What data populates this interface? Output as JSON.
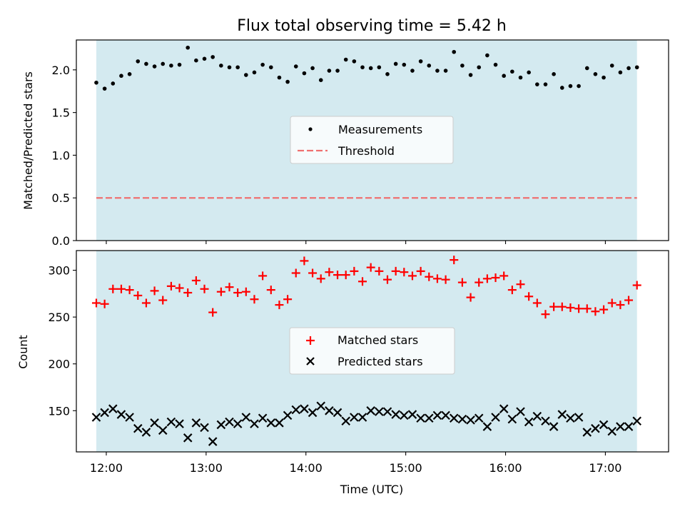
{
  "figure": {
    "title": "Flux total observing time = 5.42 h",
    "xlabel": "Time (UTC)",
    "colors": {
      "band": "#d4eaf0",
      "measurement": "#000000",
      "threshold": "#ef7070",
      "matched": "#ff0000",
      "predicted": "#000000"
    }
  },
  "chart_data": [
    {
      "type": "scatter",
      "ylabel": "Matched/Predicted stars",
      "xlim": [
        "11:42",
        "17:38"
      ],
      "ylim": [
        0,
        2.35
      ],
      "xticks": [
        "12:00",
        "13:00",
        "14:00",
        "15:00",
        "16:00",
        "17:00"
      ],
      "yticks": [
        0.0,
        0.5,
        1.0,
        1.5,
        2.0
      ],
      "ytick_labels": [
        "0.0",
        "0.5",
        "1.0",
        "1.5",
        "2.0"
      ],
      "observing_window": [
        "11:54",
        "17:19"
      ],
      "legend": {
        "position": "center",
        "entries": [
          "Measurements",
          "Threshold"
        ]
      },
      "threshold": 0.5,
      "series": [
        {
          "name": "Measurements",
          "marker": "dot",
          "x": [
            "11:54",
            "11:59",
            "12:04",
            "12:09",
            "12:14",
            "12:19",
            "12:24",
            "12:29",
            "12:34",
            "12:39",
            "12:44",
            "12:49",
            "12:54",
            "12:59",
            "13:04",
            "13:09",
            "13:14",
            "13:19",
            "13:24",
            "13:29",
            "13:34",
            "13:39",
            "13:44",
            "13:49",
            "13:54",
            "13:59",
            "14:04",
            "14:09",
            "14:14",
            "14:19",
            "14:24",
            "14:29",
            "14:34",
            "14:39",
            "14:44",
            "14:49",
            "14:54",
            "14:59",
            "15:04",
            "15:09",
            "15:14",
            "15:19",
            "15:24",
            "15:29",
            "15:34",
            "15:39",
            "15:44",
            "15:49",
            "15:54",
            "15:59",
            "16:04",
            "16:09",
            "16:14",
            "16:19",
            "16:24",
            "16:29",
            "16:34",
            "16:39",
            "16:44",
            "16:49",
            "16:54",
            "16:59",
            "17:04",
            "17:09",
            "17:14",
            "17:19"
          ],
          "y": [
            1.85,
            1.78,
            1.84,
            1.93,
            1.95,
            2.1,
            2.07,
            2.04,
            2.07,
            2.05,
            2.06,
            2.26,
            2.11,
            2.13,
            2.15,
            2.05,
            2.03,
            2.03,
            1.94,
            1.97,
            2.06,
            2.03,
            1.91,
            1.86,
            2.04,
            1.96,
            2.02,
            1.88,
            1.99,
            1.99,
            2.12,
            2.1,
            2.03,
            2.02,
            2.03,
            1.95,
            2.07,
            2.06,
            1.99,
            2.1,
            2.05,
            1.99,
            1.99,
            2.21,
            2.05,
            1.94,
            2.03,
            2.17,
            2.06,
            1.93,
            1.98,
            1.91,
            1.97,
            1.83,
            1.83,
            1.95,
            1.79,
            1.81,
            1.81,
            2.02,
            1.95,
            1.91,
            2.05,
            1.97,
            2.02,
            2.03
          ]
        }
      ]
    },
    {
      "type": "scatter",
      "ylabel": "Count",
      "xlim": [
        "11:42",
        "17:38"
      ],
      "ylim": [
        106,
        321
      ],
      "xticks": [
        "12:00",
        "13:00",
        "14:00",
        "15:00",
        "16:00",
        "17:00"
      ],
      "yticks": [
        150,
        200,
        250,
        300
      ],
      "observing_window": [
        "11:54",
        "17:19"
      ],
      "legend": {
        "position": "center",
        "entries": [
          "Matched stars",
          "Predicted stars"
        ]
      },
      "series": [
        {
          "name": "Matched stars",
          "marker": "plus",
          "x": [
            "11:54",
            "11:59",
            "12:04",
            "12:09",
            "12:14",
            "12:19",
            "12:24",
            "12:29",
            "12:34",
            "12:39",
            "12:44",
            "12:49",
            "12:54",
            "12:59",
            "13:04",
            "13:09",
            "13:14",
            "13:19",
            "13:24",
            "13:29",
            "13:34",
            "13:39",
            "13:44",
            "13:49",
            "13:54",
            "13:59",
            "14:04",
            "14:09",
            "14:14",
            "14:19",
            "14:24",
            "14:29",
            "14:34",
            "14:39",
            "14:44",
            "14:49",
            "14:54",
            "14:59",
            "15:04",
            "15:09",
            "15:14",
            "15:19",
            "15:24",
            "15:29",
            "15:34",
            "15:39",
            "15:44",
            "15:49",
            "15:54",
            "15:59",
            "16:04",
            "16:09",
            "16:14",
            "16:19",
            "16:24",
            "16:29",
            "16:34",
            "16:39",
            "16:44",
            "16:49",
            "16:54",
            "16:59",
            "17:04",
            "17:09",
            "17:14",
            "17:19"
          ],
          "y": [
            265,
            264,
            280,
            280,
            279,
            273,
            265,
            278,
            268,
            283,
            281,
            276,
            289,
            280,
            255,
            277,
            282,
            276,
            277,
            269,
            294,
            279,
            263,
            269,
            297,
            310,
            297,
            291,
            298,
            295,
            295,
            299,
            288,
            303,
            299,
            290,
            299,
            298,
            294,
            299,
            293,
            291,
            290,
            311,
            287,
            271,
            287,
            291,
            292,
            294,
            279,
            285,
            272,
            265,
            253,
            261,
            261,
            260,
            259,
            259,
            256,
            258,
            265,
            263,
            268,
            284
          ]
        },
        {
          "name": "Predicted stars",
          "marker": "x",
          "x": [
            "11:54",
            "11:59",
            "12:04",
            "12:09",
            "12:14",
            "12:19",
            "12:24",
            "12:29",
            "12:34",
            "12:39",
            "12:44",
            "12:49",
            "12:54",
            "12:59",
            "13:04",
            "13:09",
            "13:14",
            "13:19",
            "13:24",
            "13:29",
            "13:34",
            "13:39",
            "13:44",
            "13:49",
            "13:54",
            "13:59",
            "14:04",
            "14:09",
            "14:14",
            "14:19",
            "14:24",
            "14:29",
            "14:34",
            "14:39",
            "14:44",
            "14:49",
            "14:54",
            "14:59",
            "15:04",
            "15:09",
            "15:14",
            "15:19",
            "15:24",
            "15:29",
            "15:34",
            "15:39",
            "15:44",
            "15:49",
            "15:54",
            "15:59",
            "16:04",
            "16:09",
            "16:14",
            "16:19",
            "16:24",
            "16:29",
            "16:34",
            "16:39",
            "16:44",
            "16:49",
            "16:54",
            "16:59",
            "17:04",
            "17:09",
            "17:14",
            "17:19"
          ],
          "y": [
            143,
            148,
            152,
            146,
            143,
            131,
            127,
            137,
            129,
            138,
            136,
            121,
            137,
            132,
            117,
            135,
            138,
            136,
            143,
            136,
            142,
            137,
            137,
            145,
            151,
            152,
            148,
            155,
            150,
            148,
            139,
            143,
            143,
            150,
            149,
            149,
            146,
            145,
            146,
            142,
            142,
            145,
            145,
            142,
            141,
            140,
            142,
            133,
            143,
            152,
            141,
            149,
            138,
            144,
            139,
            133,
            146,
            142,
            143,
            127,
            131,
            135,
            128,
            133,
            133,
            139
          ]
        }
      ]
    }
  ]
}
